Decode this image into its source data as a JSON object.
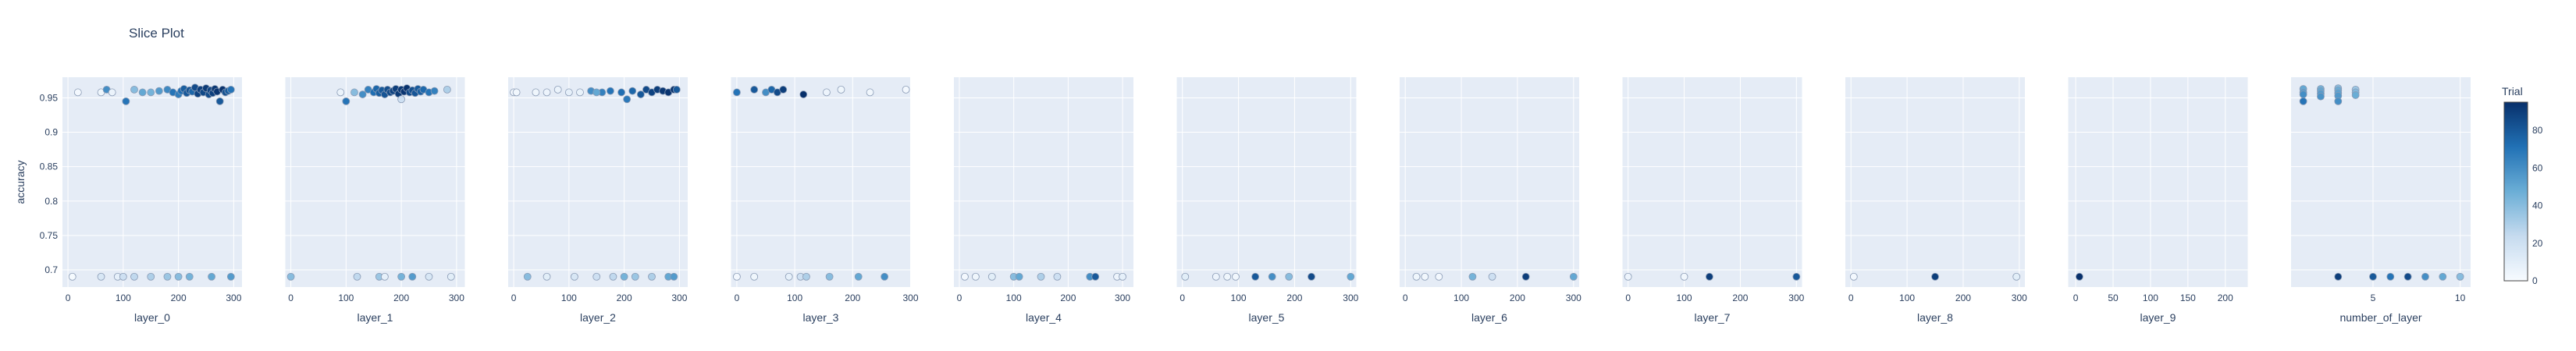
{
  "chart_data": {
    "type": "scatter",
    "title": "Slice Plot",
    "ylabel": "accuracy",
    "ylim": [
      0.675,
      0.98
    ],
    "yticks": [
      0.7,
      0.75,
      0.8,
      0.85,
      0.9,
      0.95
    ],
    "colorbar": {
      "title": "Trial",
      "range": [
        0,
        95
      ],
      "ticks": [
        0,
        20,
        40,
        60,
        80
      ],
      "colors": [
        "#f7fbff",
        "#c6dbef",
        "#6baed6",
        "#2171b5",
        "#08306b"
      ]
    },
    "panels": [
      {
        "xlabel": "layer_0",
        "xlim": [
          -10,
          315
        ],
        "xticks": [
          0,
          100,
          200,
          300
        ],
        "points": [
          [
            8,
            0.69,
            1
          ],
          [
            18,
            0.958,
            2
          ],
          [
            60,
            0.958,
            4
          ],
          [
            70,
            0.962,
            60
          ],
          [
            80,
            0.958,
            6
          ],
          [
            90,
            0.69,
            8
          ],
          [
            105,
            0.945,
            70
          ],
          [
            120,
            0.962,
            40
          ],
          [
            135,
            0.958,
            50
          ],
          [
            150,
            0.958,
            45
          ],
          [
            165,
            0.96,
            55
          ],
          [
            180,
            0.962,
            62
          ],
          [
            190,
            0.958,
            70
          ],
          [
            200,
            0.955,
            66
          ],
          [
            205,
            0.96,
            72
          ],
          [
            210,
            0.963,
            78
          ],
          [
            215,
            0.957,
            80
          ],
          [
            220,
            0.961,
            82
          ],
          [
            225,
            0.959,
            75
          ],
          [
            230,
            0.965,
            85
          ],
          [
            235,
            0.956,
            88
          ],
          [
            240,
            0.962,
            90
          ],
          [
            245,
            0.958,
            86
          ],
          [
            250,
            0.964,
            91
          ],
          [
            255,
            0.955,
            84
          ],
          [
            258,
            0.961,
            87
          ],
          [
            262,
            0.957,
            89
          ],
          [
            266,
            0.963,
            92
          ],
          [
            270,
            0.959,
            93
          ],
          [
            275,
            0.945,
            80
          ],
          [
            280,
            0.962,
            94
          ],
          [
            285,
            0.958,
            83
          ],
          [
            290,
            0.96,
            79
          ],
          [
            295,
            0.962,
            70
          ],
          [
            60,
            0.69,
            15
          ],
          [
            100,
            0.69,
            20
          ],
          [
            120,
            0.69,
            25
          ],
          [
            150,
            0.69,
            30
          ],
          [
            180,
            0.69,
            35
          ],
          [
            200,
            0.69,
            40
          ],
          [
            220,
            0.69,
            45
          ],
          [
            260,
            0.69,
            50
          ],
          [
            295,
            0.69,
            55
          ]
        ]
      },
      {
        "xlabel": "layer_1",
        "xlim": [
          -10,
          315
        ],
        "xticks": [
          0,
          100,
          200,
          300
        ],
        "points": [
          [
            0,
            0.69,
            40
          ],
          [
            90,
            0.958,
            6
          ],
          [
            100,
            0.945,
            70
          ],
          [
            115,
            0.958,
            40
          ],
          [
            130,
            0.955,
            60
          ],
          [
            140,
            0.962,
            65
          ],
          [
            150,
            0.958,
            72
          ],
          [
            155,
            0.963,
            75
          ],
          [
            160,
            0.957,
            78
          ],
          [
            165,
            0.961,
            80
          ],
          [
            170,
            0.955,
            82
          ],
          [
            175,
            0.962,
            84
          ],
          [
            180,
            0.958,
            86
          ],
          [
            185,
            0.96,
            88
          ],
          [
            190,
            0.963,
            90
          ],
          [
            195,
            0.956,
            91
          ],
          [
            200,
            0.962,
            92
          ],
          [
            205,
            0.959,
            93
          ],
          [
            210,
            0.964,
            94
          ],
          [
            215,
            0.958,
            85
          ],
          [
            220,
            0.961,
            83
          ],
          [
            225,
            0.957,
            81
          ],
          [
            230,
            0.963,
            79
          ],
          [
            235,
            0.959,
            77
          ],
          [
            240,
            0.962,
            74
          ],
          [
            250,
            0.958,
            70
          ],
          [
            260,
            0.96,
            65
          ],
          [
            283,
            0.962,
            30
          ],
          [
            200,
            0.948,
            20
          ],
          [
            120,
            0.69,
            25
          ],
          [
            160,
            0.69,
            35
          ],
          [
            200,
            0.69,
            45
          ],
          [
            220,
            0.69,
            55
          ],
          [
            250,
            0.69,
            15
          ],
          [
            290,
            0.69,
            10
          ],
          [
            170,
            0.69,
            8
          ]
        ]
      },
      {
        "xlabel": "layer_2",
        "xlim": [
          -10,
          315
        ],
        "xticks": [
          0,
          100,
          200,
          300
        ],
        "points": [
          [
            0,
            0.958,
            2
          ],
          [
            5,
            0.958,
            3
          ],
          [
            40,
            0.958,
            4
          ],
          [
            60,
            0.958,
            5
          ],
          [
            80,
            0.962,
            6
          ],
          [
            100,
            0.958,
            8
          ],
          [
            120,
            0.958,
            7
          ],
          [
            140,
            0.96,
            60
          ],
          [
            160,
            0.958,
            65
          ],
          [
            175,
            0.96,
            70
          ],
          [
            195,
            0.958,
            72
          ],
          [
            205,
            0.948,
            68
          ],
          [
            215,
            0.96,
            75
          ],
          [
            230,
            0.955,
            80
          ],
          [
            240,
            0.962,
            85
          ],
          [
            250,
            0.958,
            88
          ],
          [
            260,
            0.962,
            90
          ],
          [
            270,
            0.96,
            92
          ],
          [
            280,
            0.958,
            93
          ],
          [
            290,
            0.962,
            94
          ],
          [
            295,
            0.962,
            80
          ],
          [
            150,
            0.958,
            50
          ],
          [
            25,
            0.69,
            40
          ],
          [
            60,
            0.69,
            10
          ],
          [
            110,
            0.69,
            15
          ],
          [
            150,
            0.69,
            20
          ],
          [
            180,
            0.69,
            25
          ],
          [
            200,
            0.69,
            45
          ],
          [
            220,
            0.69,
            35
          ],
          [
            250,
            0.69,
            30
          ],
          [
            280,
            0.69,
            50
          ],
          [
            290,
            0.69,
            55
          ]
        ]
      },
      {
        "xlabel": "layer_3",
        "xlim": [
          -10,
          300
        ],
        "xticks": [
          0,
          100,
          200,
          300
        ],
        "points": [
          [
            0,
            0.958,
            70
          ],
          [
            30,
            0.962,
            80
          ],
          [
            50,
            0.958,
            60
          ],
          [
            60,
            0.962,
            75
          ],
          [
            70,
            0.958,
            85
          ],
          [
            80,
            0.962,
            90
          ],
          [
            115,
            0.955,
            95
          ],
          [
            155,
            0.958,
            5
          ],
          [
            180,
            0.962,
            4
          ],
          [
            230,
            0.958,
            3
          ],
          [
            292,
            0.962,
            2
          ],
          [
            0,
            0.69,
            2
          ],
          [
            30,
            0.69,
            4
          ],
          [
            90,
            0.69,
            8
          ],
          [
            110,
            0.69,
            20
          ],
          [
            120,
            0.69,
            30
          ],
          [
            160,
            0.69,
            40
          ],
          [
            210,
            0.69,
            50
          ],
          [
            255,
            0.69,
            60
          ]
        ]
      },
      {
        "xlabel": "layer_4",
        "xlim": [
          -10,
          320
        ],
        "xticks": [
          0,
          100,
          200,
          300
        ],
        "points": [
          [
            10,
            0.69,
            2
          ],
          [
            30,
            0.69,
            4
          ],
          [
            60,
            0.69,
            10
          ],
          [
            100,
            0.69,
            40
          ],
          [
            110,
            0.69,
            50
          ],
          [
            150,
            0.69,
            30
          ],
          [
            180,
            0.69,
            20
          ],
          [
            240,
            0.69,
            60
          ],
          [
            250,
            0.69,
            80
          ],
          [
            290,
            0.69,
            5
          ],
          [
            300,
            0.69,
            8
          ]
        ]
      },
      {
        "xlabel": "layer_5",
        "xlim": [
          -10,
          310
        ],
        "xticks": [
          0,
          100,
          200,
          300
        ],
        "points": [
          [
            5,
            0.69,
            10
          ],
          [
            60,
            0.69,
            5
          ],
          [
            80,
            0.69,
            4
          ],
          [
            95,
            0.69,
            3
          ],
          [
            130,
            0.69,
            80
          ],
          [
            160,
            0.69,
            60
          ],
          [
            190,
            0.69,
            40
          ],
          [
            230,
            0.69,
            85
          ],
          [
            300,
            0.69,
            50
          ]
        ]
      },
      {
        "xlabel": "layer_6",
        "xlim": [
          -10,
          310
        ],
        "xticks": [
          0,
          100,
          200,
          300
        ],
        "points": [
          [
            20,
            0.69,
            4
          ],
          [
            35,
            0.69,
            3
          ],
          [
            60,
            0.69,
            2
          ],
          [
            120,
            0.69,
            45
          ],
          [
            155,
            0.69,
            20
          ],
          [
            215,
            0.69,
            90
          ],
          [
            300,
            0.69,
            50
          ]
        ]
      },
      {
        "xlabel": "layer_7",
        "xlim": [
          -10,
          310
        ],
        "xticks": [
          0,
          100,
          200,
          300
        ],
        "points": [
          [
            0,
            0.69,
            5
          ],
          [
            100,
            0.69,
            3
          ],
          [
            145,
            0.69,
            90
          ],
          [
            300,
            0.69,
            80
          ]
        ]
      },
      {
        "xlabel": "layer_8",
        "xlim": [
          -10,
          310
        ],
        "xticks": [
          0,
          100,
          200,
          300
        ],
        "points": [
          [
            5,
            0.69,
            2
          ],
          [
            150,
            0.69,
            90
          ],
          [
            295,
            0.69,
            10
          ]
        ]
      },
      {
        "xlabel": "layer_9",
        "xlim": [
          -10,
          230
        ],
        "xticks": [
          0,
          50,
          100,
          150,
          200
        ],
        "points": [
          [
            5,
            0.69,
            95
          ]
        ]
      },
      {
        "xlabel": "number_of_layer",
        "xlim": [
          0.3,
          10.6
        ],
        "xticks": [
          5,
          10
        ],
        "points": [
          [
            1,
            0.963,
            50
          ],
          [
            1,
            0.958,
            55
          ],
          [
            1,
            0.955,
            60
          ],
          [
            1,
            0.945,
            70
          ],
          [
            2,
            0.963,
            45
          ],
          [
            2,
            0.96,
            50
          ],
          [
            2,
            0.956,
            55
          ],
          [
            2,
            0.952,
            58
          ],
          [
            3,
            0.964,
            40
          ],
          [
            3,
            0.961,
            48
          ],
          [
            3,
            0.957,
            52
          ],
          [
            3,
            0.953,
            56
          ],
          [
            3,
            0.945,
            60
          ],
          [
            4,
            0.962,
            35
          ],
          [
            4,
            0.958,
            42
          ],
          [
            4,
            0.954,
            48
          ],
          [
            3,
            0.69,
            90
          ],
          [
            5,
            0.69,
            80
          ],
          [
            6,
            0.69,
            70
          ],
          [
            7,
            0.69,
            85
          ],
          [
            8,
            0.69,
            60
          ],
          [
            9,
            0.69,
            50
          ],
          [
            10,
            0.69,
            40
          ]
        ]
      }
    ]
  }
}
